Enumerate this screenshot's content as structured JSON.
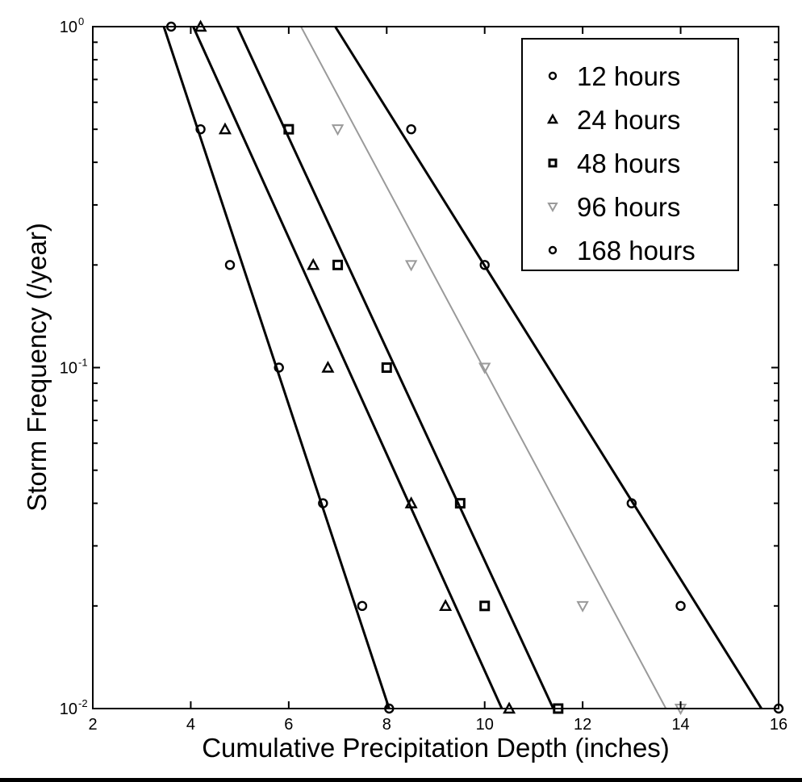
{
  "chart_data": {
    "type": "scatter",
    "title": "",
    "xlabel": "Cumulative Precipitation Depth (inches)",
    "ylabel": "Storm Frequency (/year)",
    "xlim": [
      2,
      16
    ],
    "ylim": [
      0.01,
      1
    ],
    "yscale": "log",
    "grid": false,
    "legend_position": "top-right",
    "x_ticks": [
      {
        "value": 2,
        "label": "2"
      },
      {
        "value": 4,
        "label": "4"
      },
      {
        "value": 6,
        "label": "6"
      },
      {
        "value": 8,
        "label": "8"
      },
      {
        "value": 10,
        "label": "10"
      },
      {
        "value": 12,
        "label": "12"
      },
      {
        "value": 14,
        "label": "14"
      },
      {
        "value": 16,
        "label": "16"
      }
    ],
    "y_ticks": [
      {
        "value": 0.01,
        "base": "10",
        "exp": "-2"
      },
      {
        "value": 0.1,
        "base": "10",
        "exp": "-1"
      },
      {
        "value": 1,
        "base": "10",
        "exp": "0"
      }
    ],
    "series": [
      {
        "name": "12 hours",
        "marker": "circle",
        "color": "#000000",
        "points": [
          [
            3.6,
            1
          ],
          [
            4.2,
            0.5
          ],
          [
            4.8,
            0.2
          ],
          [
            5.8,
            0.1
          ],
          [
            6.7,
            0.04
          ],
          [
            7.5,
            0.02
          ],
          [
            8.05,
            0.01
          ]
        ],
        "fit": [
          [
            3.45,
            1
          ],
          [
            8.05,
            0.01
          ]
        ]
      },
      {
        "name": "24 hours",
        "marker": "triangle",
        "color": "#000000",
        "points": [
          [
            4.2,
            1
          ],
          [
            4.7,
            0.5
          ],
          [
            6.5,
            0.2
          ],
          [
            6.8,
            0.1
          ],
          [
            8.5,
            0.04
          ],
          [
            9.2,
            0.02
          ],
          [
            10.5,
            0.01
          ]
        ],
        "fit": [
          [
            4.05,
            1
          ],
          [
            10.35,
            0.01
          ]
        ]
      },
      {
        "name": "48 hours",
        "marker": "square",
        "color": "#000000",
        "points": [
          [
            6.0,
            0.5
          ],
          [
            7.0,
            0.2
          ],
          [
            8.0,
            0.1
          ],
          [
            9.5,
            0.04
          ],
          [
            10.0,
            0.02
          ],
          [
            11.5,
            0.01
          ]
        ],
        "fit": [
          [
            4.95,
            1
          ],
          [
            11.4,
            0.01
          ]
        ]
      },
      {
        "name": "96 hours",
        "marker": "triangle-down",
        "color": "#9a9a9a",
        "points": [
          [
            7.0,
            0.5
          ],
          [
            8.5,
            0.2
          ],
          [
            10.0,
            0.1
          ],
          [
            12.0,
            0.02
          ],
          [
            14.0,
            0.01
          ]
        ],
        "fit": [
          [
            6.25,
            1
          ],
          [
            13.7,
            0.01
          ]
        ]
      },
      {
        "name": "168 hours",
        "marker": "circle",
        "color": "#000000",
        "points": [
          [
            8.5,
            0.5
          ],
          [
            10.0,
            0.2
          ],
          [
            13.0,
            0.04
          ],
          [
            14.0,
            0.02
          ],
          [
            16.0,
            0.01
          ]
        ],
        "fit": [
          [
            6.95,
            1
          ],
          [
            15.65,
            0.01
          ]
        ]
      }
    ]
  }
}
